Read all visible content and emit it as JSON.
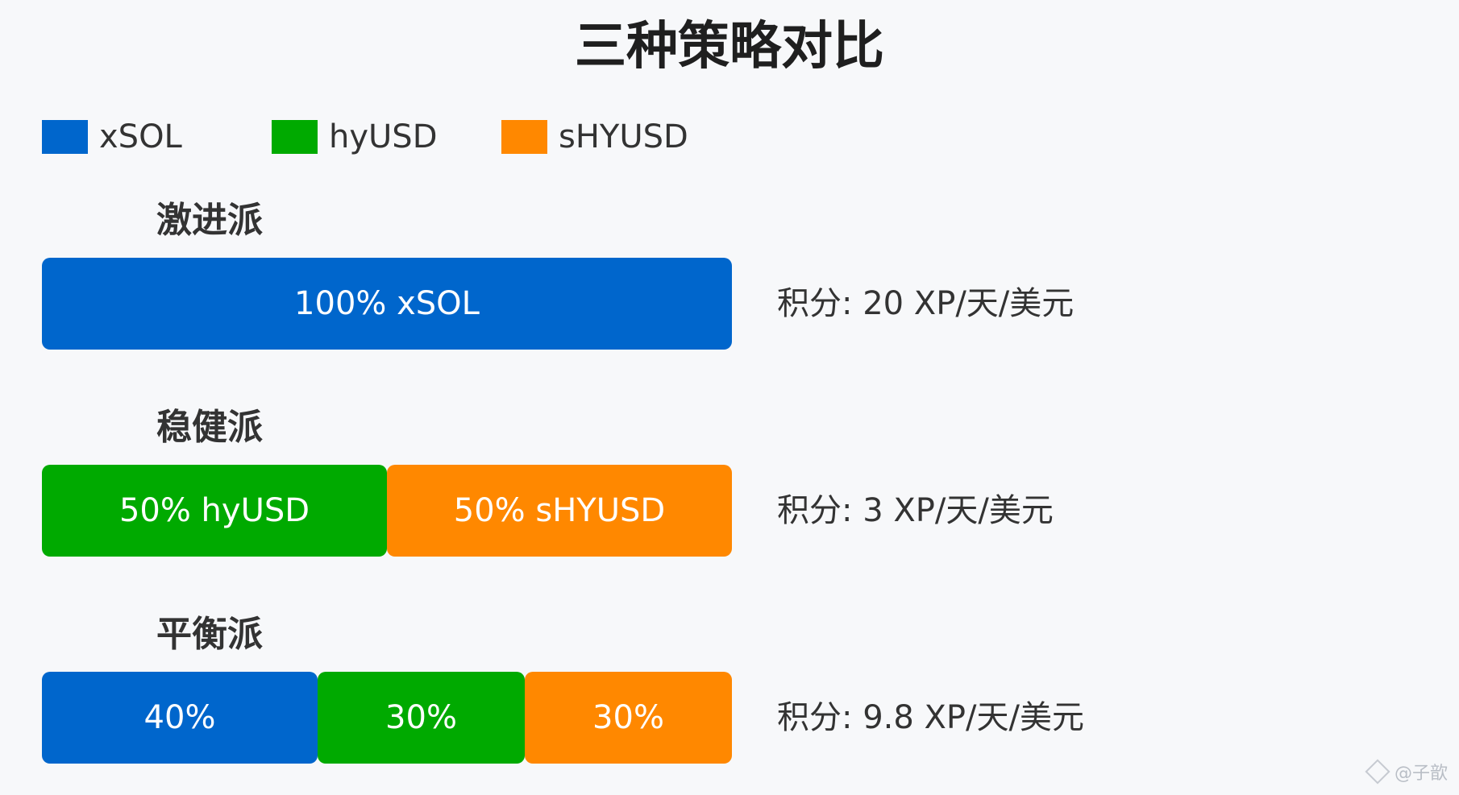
{
  "chart_data": {
    "type": "bar",
    "title": "三种策略对比",
    "legend": [
      {
        "name": "xSOL",
        "color": "#0066cc"
      },
      {
        "name": "hyUSD",
        "color": "#00aa00"
      },
      {
        "name": "sHYUSD",
        "color": "#ff8800"
      }
    ],
    "legend_position": "top-left",
    "stacked": true,
    "orientation": "horizontal",
    "grid": false,
    "xlim": [
      0,
      100
    ],
    "categories": [
      "激进派",
      "稳健派",
      "平衡派"
    ],
    "series": [
      {
        "name": "xSOL",
        "values": [
          100,
          0,
          40
        ]
      },
      {
        "name": "hyUSD",
        "values": [
          0,
          50,
          30
        ]
      },
      {
        "name": "sHYUSD",
        "values": [
          0,
          50,
          30
        ]
      }
    ],
    "strategies": [
      {
        "name": "激进派",
        "segments": [
          {
            "series": "xSOL",
            "value": 100,
            "label": "100% xSOL"
          }
        ],
        "score": "积分: 20 XP/天/美元"
      },
      {
        "name": "稳健派",
        "segments": [
          {
            "series": "hyUSD",
            "value": 50,
            "label": "50% hyUSD"
          },
          {
            "series": "sHYUSD",
            "value": 50,
            "label": "50% sHYUSD"
          }
        ],
        "score": "积分: 3 XP/天/美元"
      },
      {
        "name": "平衡派",
        "segments": [
          {
            "series": "xSOL",
            "value": 40,
            "label": "40%"
          },
          {
            "series": "hyUSD",
            "value": 30,
            "label": "30%"
          },
          {
            "series": "sHYUSD",
            "value": 30,
            "label": "30%"
          }
        ],
        "score": "积分: 9.8 XP/天/美元"
      }
    ]
  },
  "watermark": {
    "text": "@子歆",
    "icon": "diamond-logo-icon"
  }
}
